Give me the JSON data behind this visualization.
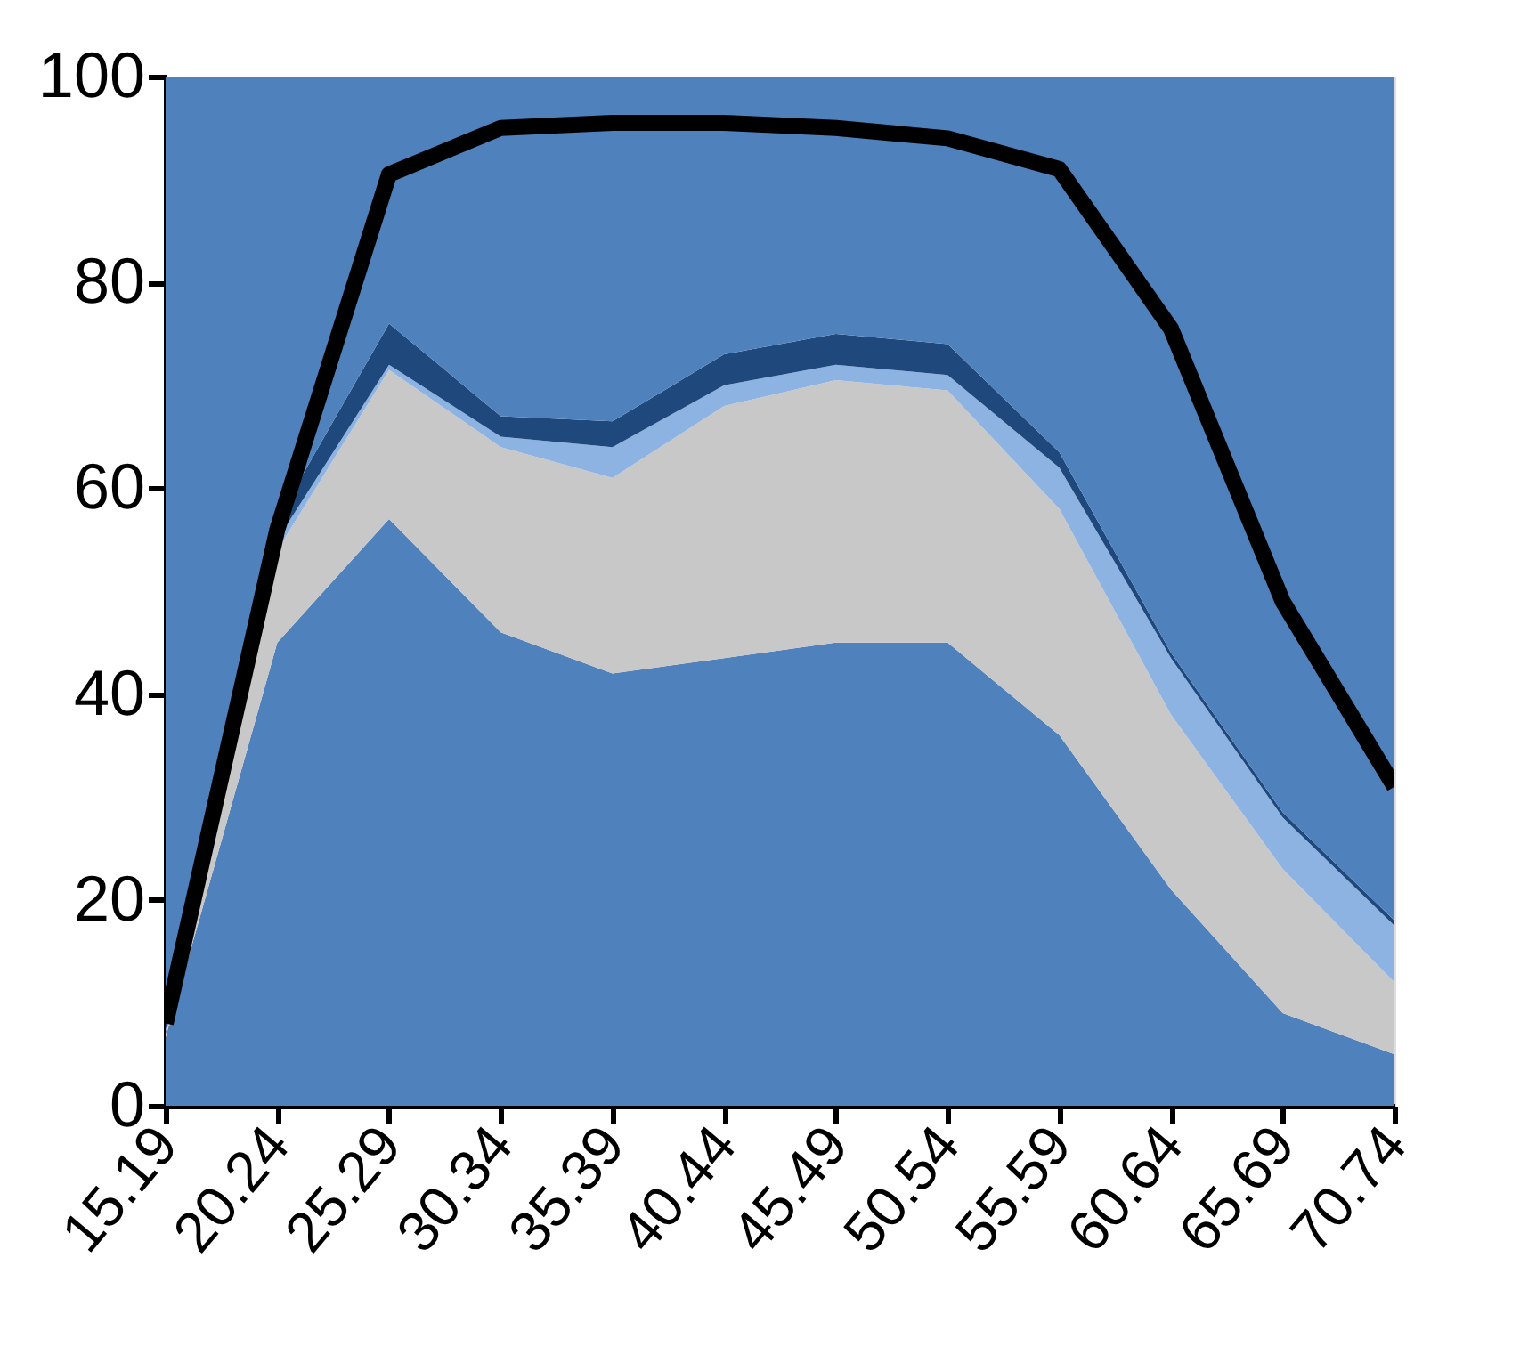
{
  "chart_data": {
    "type": "area",
    "stacked": true,
    "categories": [
      "15.19",
      "20.24",
      "25.29",
      "30.34",
      "35.39",
      "40.44",
      "45.49",
      "50.54",
      "55.59",
      "60.64",
      "65.69",
      "70.74"
    ],
    "series": [
      {
        "color": "#4f81bd",
        "values": [
          6.5,
          45,
          57,
          46,
          42,
          43.5,
          45,
          45,
          36,
          21,
          9,
          5
        ]
      },
      {
        "color": "#c8c8c8",
        "values": [
          0.5,
          9,
          14.5,
          18,
          19,
          24.5,
          25.5,
          24.5,
          22,
          17,
          14,
          7
        ]
      },
      {
        "color": "#8db3e2",
        "values": [
          0.5,
          1,
          0.5,
          1,
          3,
          2,
          1.5,
          1.5,
          4,
          5.5,
          5,
          5.5
        ]
      },
      {
        "color": "#1f497d",
        "values": [
          0.5,
          2,
          4,
          2,
          2.5,
          3,
          3,
          3,
          1.5,
          0.5,
          0.5,
          0.5
        ]
      },
      {
        "color": "#4f81bd",
        "values": [
          92,
          43,
          24,
          33,
          33.5,
          27,
          25,
          26,
          36.5,
          56,
          71.5,
          82
        ]
      },
      {
        "type": "line",
        "color": "#000000",
        "values": [
          8,
          56,
          90.5,
          95,
          95.5,
          95.5,
          95,
          94,
          91,
          75.5,
          49,
          31
        ]
      }
    ],
    "ylim": [
      0,
      100
    ],
    "yticks": [
      0,
      20,
      40,
      60,
      80,
      100
    ],
    "grid": false
  }
}
